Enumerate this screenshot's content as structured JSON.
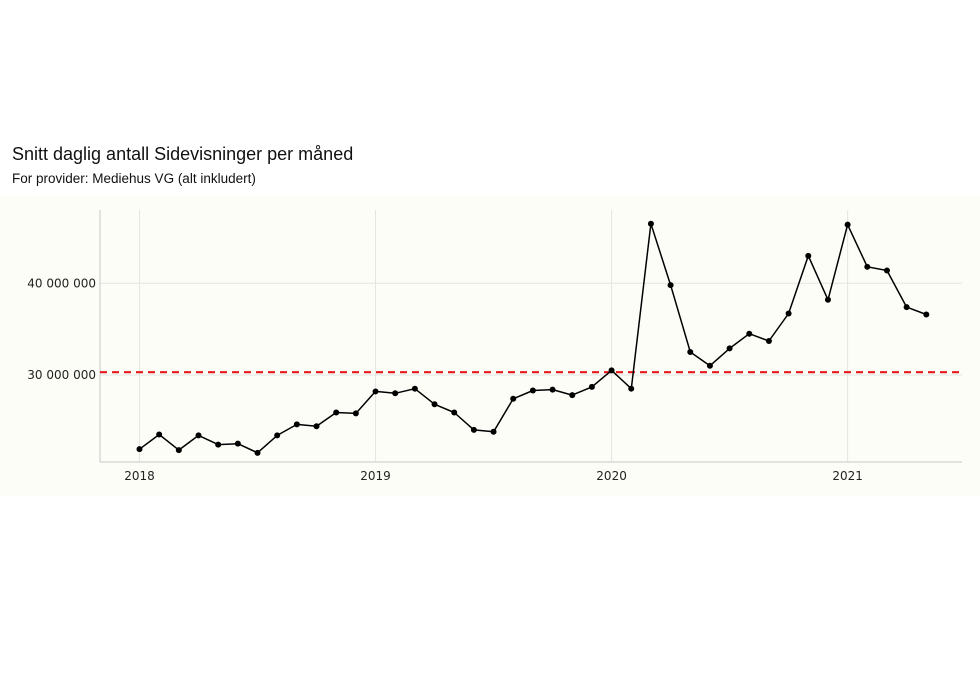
{
  "title": "Snitt daglig antall Sidevisninger per måned",
  "subtitle": "For provider: Mediehus VG (alt inkludert)",
  "chart_data": {
    "type": "line",
    "title": "Snitt daglig antall Sidevisninger per måned",
    "subtitle": "For provider: Mediehus VG (alt inkludert)",
    "xlabel": "",
    "ylabel": "",
    "x": [
      "2018-01",
      "2018-02",
      "2018-03",
      "2018-04",
      "2018-05",
      "2018-06",
      "2018-07",
      "2018-08",
      "2018-09",
      "2018-10",
      "2018-11",
      "2018-12",
      "2019-01",
      "2019-02",
      "2019-03",
      "2019-04",
      "2019-05",
      "2019-06",
      "2019-07",
      "2019-08",
      "2019-09",
      "2019-10",
      "2019-11",
      "2019-12",
      "2020-01",
      "2020-02",
      "2020-03",
      "2020-04",
      "2020-05",
      "2020-06",
      "2020-07",
      "2020-08",
      "2020-09",
      "2020-10",
      "2020-11",
      "2020-12",
      "2021-01",
      "2021-02",
      "2021-03",
      "2021-04",
      "2021-05"
    ],
    "series": [
      {
        "color": "#000000",
        "values": [
          21900000,
          23500000,
          21800000,
          23400000,
          22400000,
          22500000,
          21500000,
          23400000,
          24600000,
          24400000,
          25900000,
          25800000,
          28200000,
          28000000,
          28500000,
          26800000,
          25900000,
          24000000,
          23800000,
          27400000,
          28300000,
          28400000,
          27800000,
          28700000,
          30500000,
          28500000,
          46500000,
          39800000,
          32500000,
          31000000,
          32900000,
          34500000,
          33700000,
          36700000,
          43000000,
          38200000,
          46400000,
          41800000,
          41400000,
          37400000,
          36600000
        ]
      }
    ],
    "reference_line": {
      "value": 30300000,
      "style": "dashed",
      "color": "#e31a1c"
    },
    "xticks": [
      {
        "label": "2018",
        "at": "2018-01"
      },
      {
        "label": "2019",
        "at": "2019-01"
      },
      {
        "label": "2020",
        "at": "2020-01"
      },
      {
        "label": "2021",
        "at": "2021-01"
      }
    ],
    "yticks": [
      {
        "label": "30 000 000",
        "value": 30000000
      },
      {
        "label": "40 000 000",
        "value": 40000000
      }
    ],
    "ylim": [
      20500000,
      48000000
    ],
    "grid": true,
    "background": "#fdfdf8",
    "legend": "none"
  }
}
